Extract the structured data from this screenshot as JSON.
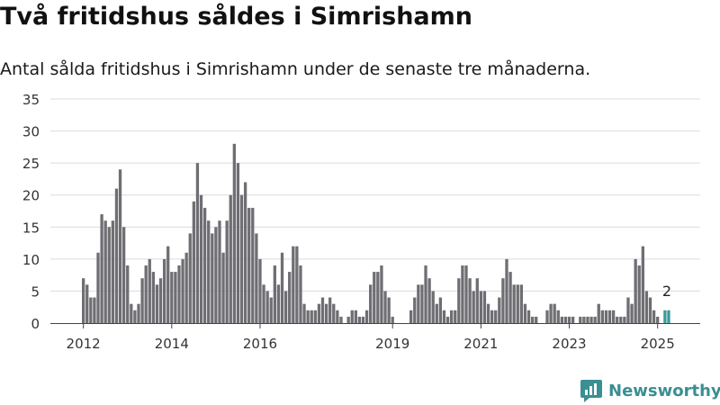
{
  "title": "Två fritidshus såldes i Simrishamn",
  "subtitle": "Antal sålda fritidshus i Simrishamn under de senaste tre månaderna.",
  "brand": {
    "name": "Newsworthy",
    "icon": "newsworthy-logo-icon",
    "color": "#3a8f92"
  },
  "chart_data": {
    "type": "bar",
    "title": "Två fritidshus såldes i Simrishamn",
    "subtitle": "Antal sålda fritidshus i Simrishamn under de senaste tre månaderna.",
    "xlabel": "",
    "ylabel": "",
    "ylim": [
      0,
      35
    ],
    "yticks": [
      0,
      5,
      10,
      15,
      20,
      25,
      30,
      35
    ],
    "grid": true,
    "legend": "none",
    "start_month": "2012-01",
    "xticks": [
      {
        "label": "2012",
        "month": "2012-01"
      },
      {
        "label": "2014",
        "month": "2014-01"
      },
      {
        "label": "2016",
        "month": "2016-01"
      },
      {
        "label": "2019",
        "month": "2019-01"
      },
      {
        "label": "2021",
        "month": "2021-01"
      },
      {
        "label": "2023",
        "month": "2023-01"
      },
      {
        "label": "2025",
        "month": "2025-01"
      }
    ],
    "bar_color": "#6e6e73",
    "highlight_color": "#3a9a9a",
    "last_value_label": "2",
    "values": [
      7,
      6,
      4,
      4,
      11,
      17,
      16,
      15,
      16,
      21,
      24,
      15,
      9,
      3,
      2,
      3,
      7,
      9,
      10,
      8,
      6,
      7,
      10,
      12,
      8,
      8,
      9,
      10,
      11,
      14,
      19,
      25,
      20,
      18,
      16,
      14,
      15,
      16,
      11,
      16,
      20,
      28,
      25,
      20,
      22,
      18,
      18,
      14,
      10,
      6,
      5,
      4,
      9,
      6,
      11,
      5,
      8,
      12,
      12,
      9,
      3,
      2,
      2,
      2,
      3,
      4,
      3,
      4,
      3,
      2,
      1,
      0,
      1,
      2,
      2,
      1,
      1,
      2,
      6,
      8,
      8,
      9,
      5,
      4,
      1,
      0,
      0,
      0,
      0,
      2,
      4,
      6,
      6,
      9,
      7,
      5,
      3,
      4,
      2,
      1,
      2,
      2,
      7,
      9,
      9,
      7,
      5,
      7,
      5,
      5,
      3,
      2,
      2,
      4,
      7,
      10,
      8,
      6,
      6,
      6,
      3,
      2,
      1,
      1,
      0,
      0,
      2,
      3,
      3,
      2,
      1,
      1,
      1,
      1,
      0,
      1,
      1,
      1,
      1,
      1,
      3,
      2,
      2,
      2,
      2,
      1,
      1,
      1,
      4,
      3,
      10,
      9,
      12,
      5,
      4,
      2,
      1,
      0,
      2,
      2
    ]
  }
}
